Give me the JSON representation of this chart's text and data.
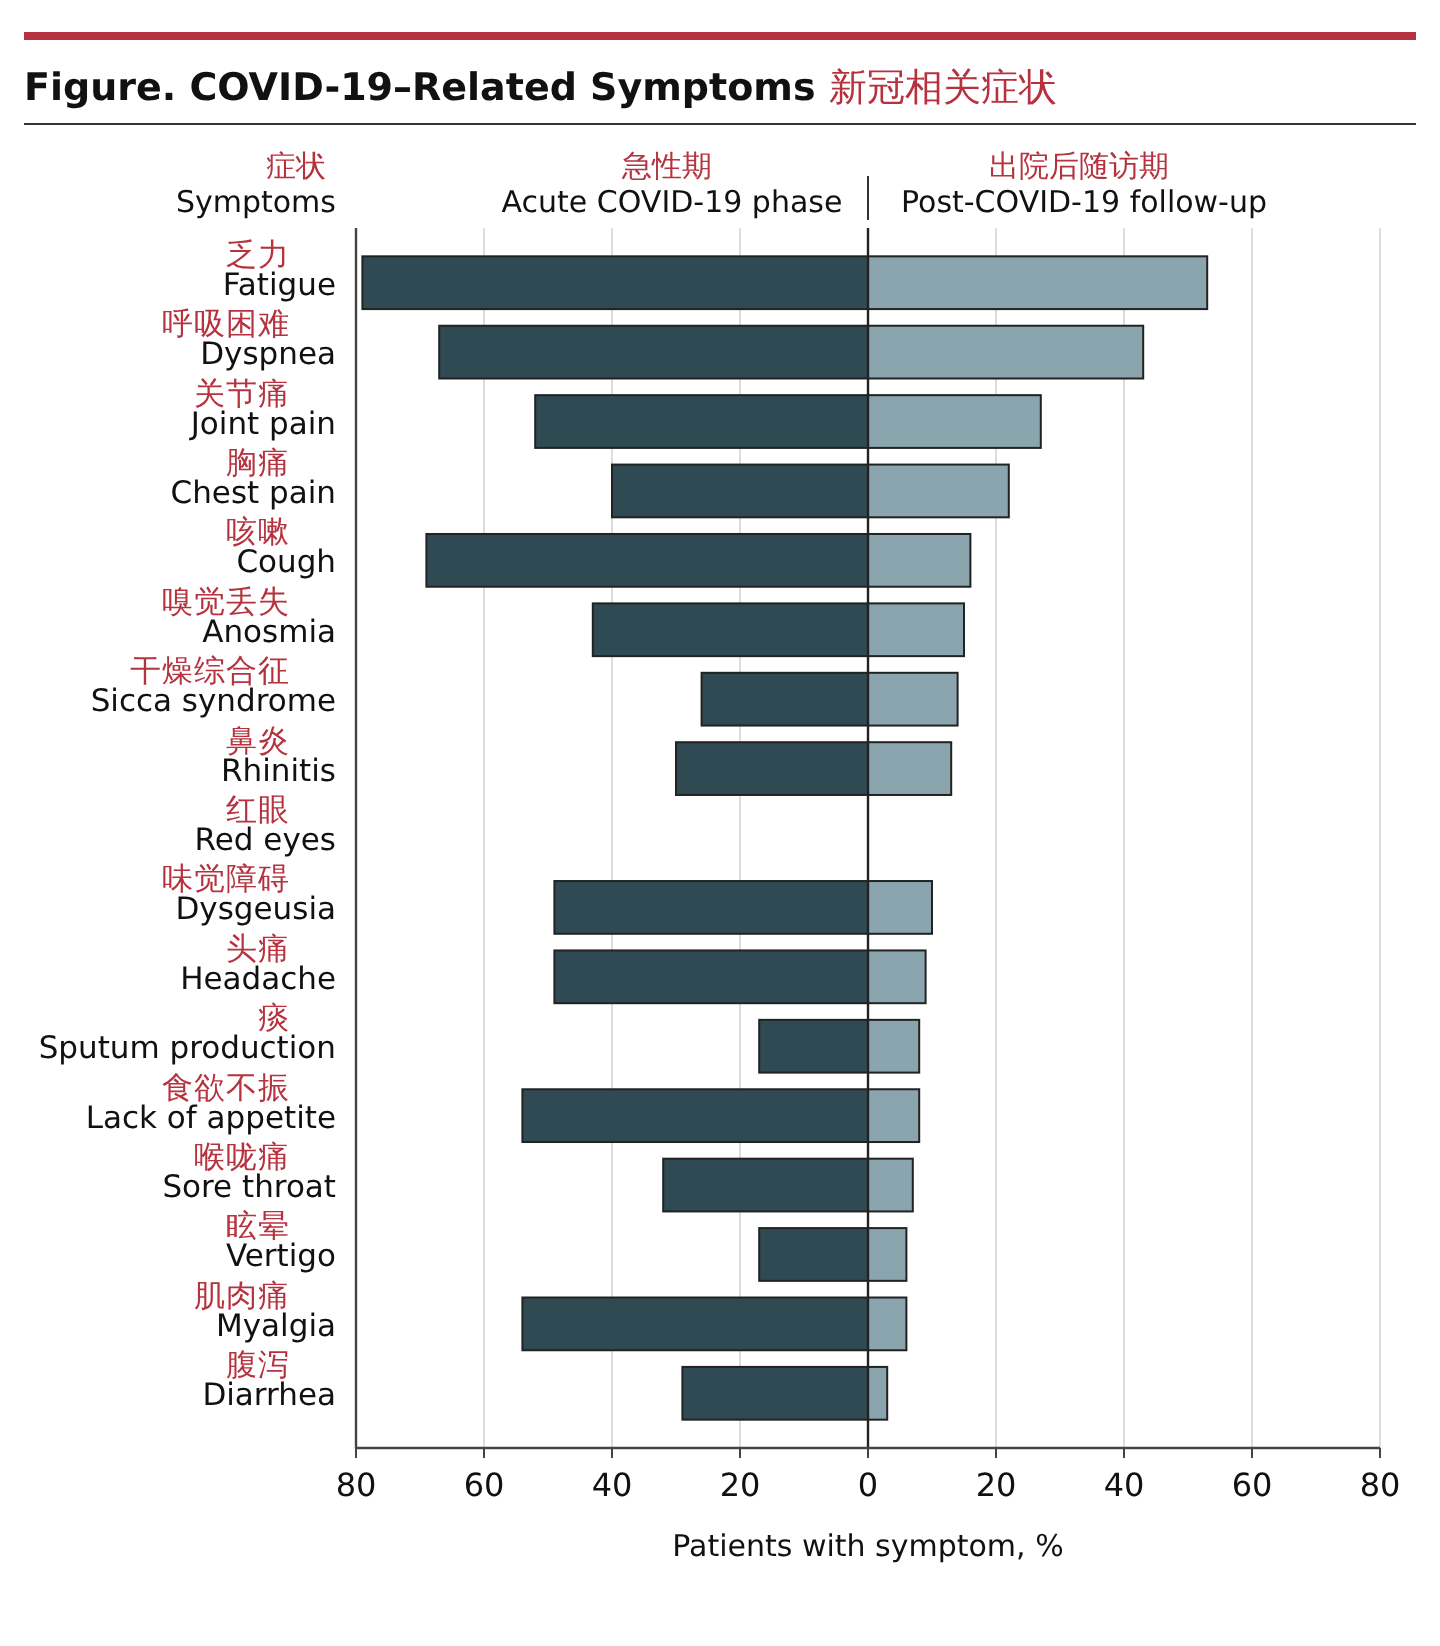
{
  "chart_data": {
    "type": "bar",
    "orientation": "horizontal",
    "stacked": true,
    "title": "Figure. COVID-19–Related Symptoms 新冠相关症状",
    "ylabel": "症状 Symptoms",
    "xlabel": "Patients with symptom, %",
    "categories": [
      "乏力 Fatigue",
      "呼吸困难 Dyspnea",
      "关节痛 Joint pain",
      "胸痛 Chest pain",
      "咳嗽 Cough",
      "嗅觉丢失 Anosmia",
      "干燥综合征 Sicca syndrome",
      "鼻炎 Rhinitis",
      "红眼 Red eyes",
      "味觉障碍 Dysgeusia",
      "头痛 Headache",
      "痰 Sputum production",
      "食欲不振 Lack of appetite",
      "喉咙痛 Sore throat",
      "眩晕 Vertigo",
      "肌肉痛 Myalgia",
      "腹泻 Diarrhea"
    ],
    "series": [
      {
        "name": "急性期 Acute COVID-19 phase",
        "color": "#2f4a52",
        "values": [
          -79,
          -67,
          -52,
          -40,
          -69,
          -43,
          -26,
          -30,
          null,
          -49,
          -49,
          -17,
          -54,
          -32,
          -17,
          -54,
          -29
        ]
      },
      {
        "name": "出院后随访期 Post-COVID-19 follow-up",
        "color": "#8aa5ae",
        "values": [
          53,
          43,
          27,
          22,
          16,
          15,
          14,
          13,
          null,
          10,
          9,
          8,
          8,
          7,
          6,
          6,
          3
        ]
      }
    ],
    "xlim": [
      -80,
      80
    ],
    "xticks": [
      {
        "value": -80,
        "label": "80"
      },
      {
        "value": -60,
        "label": "60"
      },
      {
        "value": -40,
        "label": "40"
      },
      {
        "value": -20,
        "label": "20"
      },
      0,
      20,
      40,
      60,
      80
    ],
    "grid": "x",
    "legend": false
  }
}
